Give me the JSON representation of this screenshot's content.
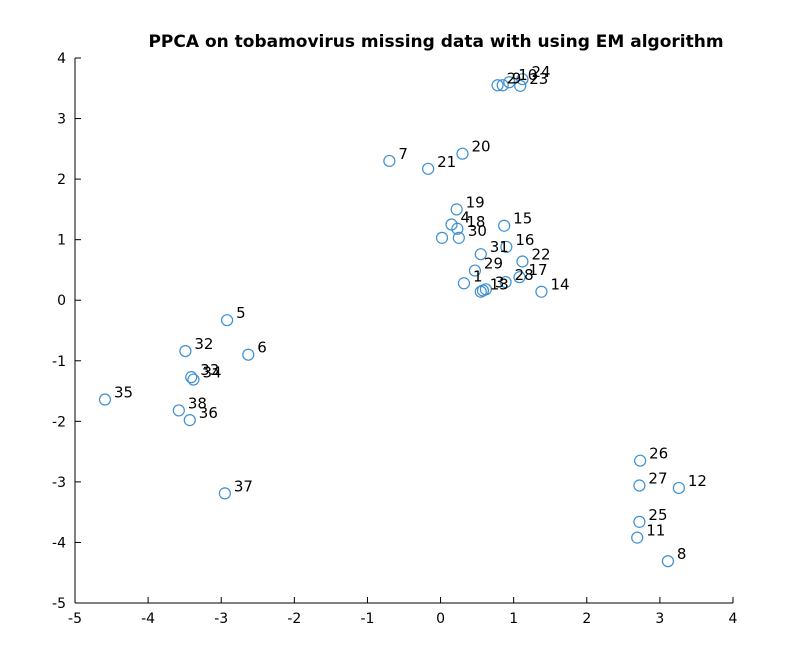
{
  "chart_data": {
    "type": "scatter",
    "title": "PPCA on tobamovirus missing data with using EM algorithm",
    "xlabel": "",
    "ylabel": "",
    "xlim": [
      -5,
      4
    ],
    "ylim": [
      -5,
      4
    ],
    "xticks": [
      "-5",
      "-4",
      "-3",
      "-2",
      "-1",
      "0",
      "1",
      "2",
      "3",
      "4"
    ],
    "yticks": [
      "-5",
      "-4",
      "-3",
      "-2",
      "-1",
      "0",
      "1",
      "2",
      "3",
      "4"
    ],
    "grid": false,
    "marker_color": "#3d8fd1",
    "points": [
      {
        "label": "1",
        "x": 0.32,
        "y": 0.28
      },
      {
        "label": "2",
        "x": 0.78,
        "y": 3.55
      },
      {
        "label": "3",
        "x": 0.62,
        "y": 0.18
      },
      {
        "label": "4",
        "x": 0.15,
        "y": 1.25
      },
      {
        "label": "5",
        "x": -2.92,
        "y": -0.33
      },
      {
        "label": "6",
        "x": -2.63,
        "y": -0.9
      },
      {
        "label": "7",
        "x": -0.7,
        "y": 2.3
      },
      {
        "label": "8",
        "x": 3.11,
        "y": -4.31
      },
      {
        "label": "9",
        "x": 0.85,
        "y": 3.55
      },
      {
        "label": "10",
        "x": 0.94,
        "y": 3.6
      },
      {
        "label": "11",
        "x": 2.69,
        "y": -3.92
      },
      {
        "label": "12",
        "x": 3.26,
        "y": -3.1
      },
      {
        "label": "13",
        "x": 0.55,
        "y": 0.14
      },
      {
        "label": "14",
        "x": 1.38,
        "y": 0.14
      },
      {
        "label": "15",
        "x": 0.87,
        "y": 1.23
      },
      {
        "label": "16",
        "x": 0.9,
        "y": 0.88
      },
      {
        "label": "17",
        "x": 1.08,
        "y": 0.38
      },
      {
        "label": "18",
        "x": 0.23,
        "y": 1.18
      },
      {
        "label": "19",
        "x": 0.22,
        "y": 1.5
      },
      {
        "label": "20",
        "x": 0.3,
        "y": 2.42
      },
      {
        "label": "21",
        "x": -0.17,
        "y": 2.17
      },
      {
        "label": "22",
        "x": 1.12,
        "y": 0.64
      },
      {
        "label": "23",
        "x": 1.09,
        "y": 3.54
      },
      {
        "label": "24",
        "x": 1.12,
        "y": 3.65
      },
      {
        "label": "25",
        "x": 2.72,
        "y": -3.66
      },
      {
        "label": "26",
        "x": 2.73,
        "y": -2.65
      },
      {
        "label": "27",
        "x": 2.72,
        "y": -3.06
      },
      {
        "label": "28",
        "x": 0.89,
        "y": 0.3
      },
      {
        "label": "29",
        "x": 0.47,
        "y": 0.49
      },
      {
        "label": "30",
        "x": 0.25,
        "y": 1.03
      },
      {
        "label": "31",
        "x": 0.55,
        "y": 0.76
      },
      {
        "label": "32",
        "x": -3.49,
        "y": -0.84
      },
      {
        "label": "33",
        "x": -3.41,
        "y": -1.27
      },
      {
        "label": "34",
        "x": -3.38,
        "y": -1.31
      },
      {
        "label": "35",
        "x": -4.59,
        "y": -1.64
      },
      {
        "label": "36",
        "x": -3.43,
        "y": -1.98
      },
      {
        "label": "37",
        "x": -2.95,
        "y": -3.19
      },
      {
        "label": "38",
        "x": -3.58,
        "y": -1.82
      },
      {
        "label": "",
        "x": 0.02,
        "y": 1.03
      },
      {
        "label": "",
        "x": 0.58,
        "y": 0.16
      }
    ]
  }
}
